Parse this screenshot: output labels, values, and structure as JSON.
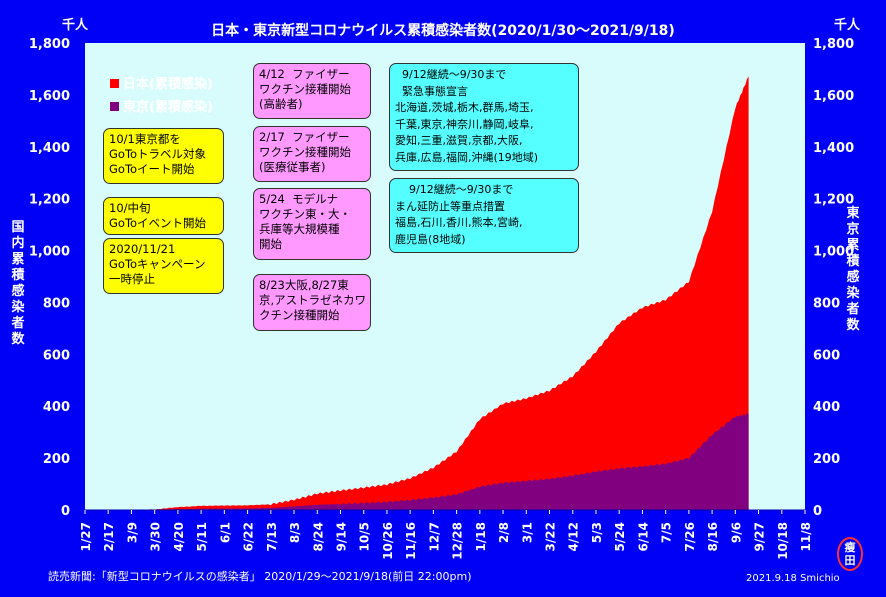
{
  "title": "日本・東京新型コロナウイルス累積感染者数(2020/1/30〜2021/9/18)",
  "unit_left": "千人",
  "unit_right": "千人",
  "ylabel_left": "国内累積感染者数",
  "ylabel_right": "東京累積感染者数",
  "source": "読売新聞:「新型コロナウイルスの感染者」 2020/1/29〜2021/9/18(前日 22:00pm)",
  "credit": "2021.9.18  Smichio",
  "stamp_text": "瘦田",
  "colors": {
    "background": "#0000f6",
    "japan": "#ff0000",
    "tokyo": "#800080",
    "plot_bg": "#d8fcfc"
  },
  "annotations": [
    {
      "id": "goto-travel",
      "color": "yellow",
      "text": "10/1東京都を\nGoToトラベル対象\nGoToイート開始"
    },
    {
      "id": "goto-event",
      "color": "yellow",
      "text": "10/中旬\nGoToイベント開始"
    },
    {
      "id": "goto-stop",
      "color": "yellow",
      "text": "2020/11/21\nGoToキャンペーン\n一時停止"
    },
    {
      "id": "pfizer-elderly",
      "color": "pink",
      "text": "4/12  ファイザー\nワクチン接種開始\n(高齢者)"
    },
    {
      "id": "pfizer-medical",
      "color": "pink",
      "text": "2/17  ファイザー\nワクチン接種開始\n(医療従事者)"
    },
    {
      "id": "moderna",
      "color": "pink",
      "text": "5/24  モデルナ\nワクチン東・大・\n兵庫等大規模種\n開始"
    },
    {
      "id": "astrazeneca",
      "color": "pink",
      "text": "8/23大阪,8/27東\n京,アストラゼネカワ\nクチン接種開始"
    },
    {
      "id": "emergency",
      "color": "cyan",
      "text": "  9/12継続〜9/30まで\n  緊急事態宣言\n北海道,茨城,栃木,群馬,埼玉,\n千葉,東京,神奈川,静岡,岐阜,\n愛知,三重,滋賀,京都,大阪,\n兵庫,広島,福岡,沖縄(19地域)"
    },
    {
      "id": "priority",
      "color": "cyan",
      "text": "    9/12継続〜9/30まで\nまん延防止等重点措置\n福島,石川,香川,熊本,宮崎,\n鹿児島(8地域)"
    }
  ],
  "chart_data": {
    "type": "area",
    "title": "日本・東京新型コロナウイルス累積感染者数(2020/1/30〜2021/9/18)",
    "ylabel": "国内累積感染者数",
    "y2label": "東京累積感染者数",
    "y_unit": "千人",
    "ylim": [
      0,
      1800
    ],
    "y_ticks": [
      "0",
      "200",
      "400",
      "600",
      "800",
      "1,000",
      "1,200",
      "1,400",
      "1,600",
      "1,800"
    ],
    "x_ticks": [
      "1/27",
      "2/17",
      "3/9",
      "3/30",
      "4/20",
      "5/11",
      "6/1",
      "6/22",
      "7/13",
      "8/3",
      "8/24",
      "9/14",
      "10/5",
      "10/26",
      "11/16",
      "12/7",
      "12/28",
      "1/18",
      "2/8",
      "3/1",
      "3/22",
      "4/12",
      "5/3",
      "5/24",
      "6/14",
      "7/5",
      "7/26",
      "8/16",
      "9/6",
      "9/27",
      "10/18",
      "11/8"
    ],
    "xlim": [
      "2020-01-27",
      "2021-11-08"
    ],
    "grid": false,
    "legend_position": "top-left",
    "series": [
      {
        "name": "日本(累積感染)",
        "color": "#ff0000",
        "x": [
          "2020-01-27",
          "2020-03-01",
          "2020-03-30",
          "2020-04-20",
          "2020-05-11",
          "2020-06-01",
          "2020-06-22",
          "2020-07-13",
          "2020-08-03",
          "2020-08-24",
          "2020-09-14",
          "2020-10-05",
          "2020-10-26",
          "2020-11-16",
          "2020-12-07",
          "2020-12-28",
          "2021-01-18",
          "2021-02-08",
          "2021-03-01",
          "2021-03-22",
          "2021-04-12",
          "2021-05-03",
          "2021-05-24",
          "2021-06-14",
          "2021-07-05",
          "2021-07-26",
          "2021-08-16",
          "2021-09-06",
          "2021-09-18"
        ],
        "values": [
          0,
          0.5,
          2,
          11,
          16,
          17,
          18,
          22,
          39,
          63,
          75,
          86,
          98,
          122,
          163,
          225,
          350,
          410,
          430,
          460,
          515,
          610,
          720,
          780,
          810,
          880,
          1150,
          1550,
          1672
        ]
      },
      {
        "name": "東京(累積感染)",
        "color": "#800080",
        "x": [
          "2020-01-27",
          "2020-03-01",
          "2020-03-30",
          "2020-04-20",
          "2020-05-11",
          "2020-06-01",
          "2020-06-22",
          "2020-07-13",
          "2020-08-03",
          "2020-08-24",
          "2020-09-14",
          "2020-10-05",
          "2020-10-26",
          "2020-11-16",
          "2020-12-07",
          "2020-12-28",
          "2021-01-18",
          "2021-02-08",
          "2021-03-01",
          "2021-03-22",
          "2021-04-12",
          "2021-05-03",
          "2021-05-24",
          "2021-06-14",
          "2021-07-05",
          "2021-07-26",
          "2021-08-16",
          "2021-09-06",
          "2021-09-18"
        ],
        "values": [
          0,
          0,
          0.4,
          3.5,
          5,
          5.5,
          6,
          8,
          14,
          20,
          23,
          27,
          31,
          38,
          48,
          60,
          90,
          105,
          112,
          120,
          132,
          148,
          160,
          168,
          178,
          200,
          290,
          360,
          370
        ]
      }
    ]
  }
}
